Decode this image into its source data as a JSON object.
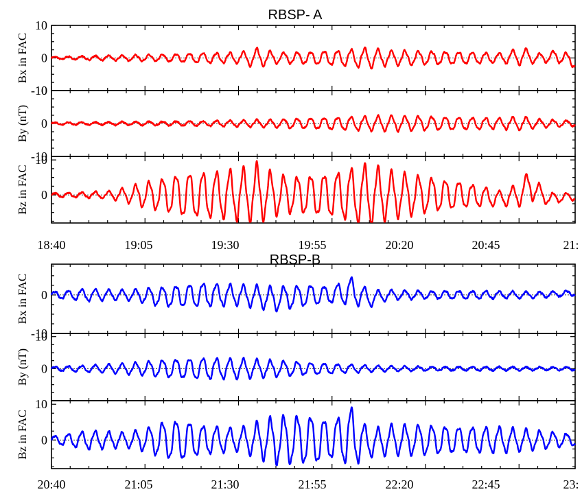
{
  "chart_data": [
    {
      "type": "line",
      "title": "RBSP- A",
      "color": "#ff0000",
      "x_tick_labels": [
        "18:40",
        "19:05",
        "19:30",
        "19:55",
        "20:20",
        "20:45",
        "21:"
      ],
      "xlim": [
        "18:40",
        "21:00"
      ],
      "panels": [
        {
          "key": "bx",
          "ylabel": "Bx  in FAC",
          "ylim": [
            -10,
            10
          ],
          "ytick_labels": [
            "10",
            "0",
            "-10"
          ],
          "series": [
            {
              "x": [
                "18:40",
                "18:50",
                "19:00",
                "19:10",
                "19:20",
                "19:30",
                "19:35",
                "19:40",
                "19:50",
                "20:00",
                "20:05",
                "20:10",
                "20:20",
                "20:30",
                "20:40",
                "20:46",
                "20:50",
                "20:56",
                "21:00"
              ],
              "amplitude": [
                0.3,
                0.6,
                0.8,
                1.0,
                1.4,
                1.6,
                2.8,
                1.6,
                1.8,
                2.5,
                3.0,
                2.2,
                2.0,
                1.8,
                1.4,
                2.6,
                1.2,
                2.0,
                1.5
              ],
              "offset": [
                0,
                0,
                0,
                0,
                0,
                0,
                0,
                0,
                0,
                0,
                0,
                0,
                0,
                0,
                0,
                0.5,
                0,
                0.5,
                -1.5
              ]
            }
          ]
        },
        {
          "key": "by",
          "ylabel": "By (nT)",
          "ylim": [
            -10,
            10
          ],
          "ytick_labels": [
            "10",
            "0",
            "-10"
          ],
          "series": [
            {
              "x": [
                "18:40",
                "18:50",
                "19:00",
                "19:10",
                "19:20",
                "19:30",
                "19:40",
                "19:50",
                "20:00",
                "20:10",
                "20:20",
                "20:30",
                "20:40",
                "20:46",
                "20:50",
                "21:00"
              ],
              "amplitude": [
                0.3,
                0.4,
                0.5,
                0.6,
                0.7,
                0.9,
                1.2,
                1.6,
                2.0,
                2.2,
                2.0,
                1.8,
                1.6,
                2.0,
                1.2,
                0.8
              ],
              "offset": [
                0,
                0,
                0,
                0,
                0,
                0,
                0,
                0,
                0,
                0,
                0,
                0,
                0,
                0,
                0,
                0
              ]
            }
          ]
        },
        {
          "key": "bz",
          "ylabel": "Bz in FAC",
          "ylim": [
            -8,
            11
          ],
          "ytick_labels": [
            "10",
            "0"
          ],
          "series": [
            {
              "x": [
                "18:40",
                "18:55",
                "19:00",
                "19:05",
                "19:10",
                "19:15",
                "19:25",
                "19:30",
                "19:35",
                "19:40",
                "19:45",
                "19:55",
                "20:05",
                "20:10",
                "20:20",
                "20:30",
                "20:40",
                "20:45",
                "20:48",
                "20:52",
                "21:00"
              ],
              "amplitude": [
                0.5,
                1.0,
                2.0,
                3.5,
                4.5,
                6.0,
                6.5,
                7.0,
                8.0,
                5.5,
                5.0,
                6.0,
                8.5,
                6.5,
                5.0,
                3.5,
                2.0,
                3.0,
                4.0,
                1.5,
                1.0
              ],
              "offset": [
                0,
                0,
                0,
                0,
                0,
                0,
                0,
                0,
                0.5,
                0,
                0,
                0,
                0,
                0,
                0,
                0,
                -1,
                0,
                3,
                -1,
                -0.5
              ]
            }
          ]
        }
      ]
    },
    {
      "type": "line",
      "title": "RBSP-B",
      "color": "#0000ff",
      "x_tick_labels": [
        "20:40",
        "21:05",
        "21:30",
        "21:55",
        "22:20",
        "22:45",
        "23:"
      ],
      "xlim": [
        "20:40",
        "23:00"
      ],
      "panels": [
        {
          "key": "bx",
          "ylabel": "Bx in FAC",
          "ylim": [
            -10,
            8
          ],
          "ytick_labels": [
            "0",
            "-10"
          ],
          "series": [
            {
              "x": [
                "20:40",
                "20:50",
                "21:00",
                "21:10",
                "21:20",
                "21:30",
                "21:40",
                "21:50",
                "21:55",
                "22:00",
                "22:05",
                "22:10",
                "22:20",
                "22:30",
                "22:40",
                "22:50",
                "23:00"
              ],
              "amplitude": [
                0.8,
                1.5,
                1.2,
                2.5,
                3.0,
                2.5,
                3.0,
                2.5,
                2.0,
                3.5,
                2.0,
                1.2,
                1.0,
                1.0,
                0.9,
                0.8,
                0.6
              ],
              "offset": [
                0,
                0,
                0,
                -0.5,
                0,
                0,
                -1,
                0,
                0,
                1,
                -1,
                0,
                0,
                0,
                0,
                0,
                0.5
              ]
            }
          ]
        },
        {
          "key": "by",
          "ylabel": "By (nT)",
          "ylim": [
            -10,
            11
          ],
          "ytick_labels": [
            "10",
            "0"
          ],
          "series": [
            {
              "x": [
                "20:40",
                "20:50",
                "21:00",
                "21:10",
                "21:20",
                "21:30",
                "21:40",
                "21:50",
                "22:00",
                "22:10",
                "22:20",
                "22:30",
                "22:40",
                "22:50",
                "23:00"
              ],
              "amplitude": [
                0.6,
                1.0,
                1.6,
                2.6,
                3.2,
                3.0,
                2.4,
                1.8,
                1.2,
                0.8,
                0.6,
                0.6,
                0.6,
                0.5,
                0.5
              ],
              "offset": [
                0,
                0,
                0,
                0,
                0,
                0,
                0,
                0,
                0,
                0,
                0,
                0,
                0,
                0,
                0
              ]
            }
          ]
        },
        {
          "key": "bz",
          "ylabel": "Bz in FAC",
          "ylim": [
            -8,
            11
          ],
          "ytick_labels": [
            "10",
            "0"
          ],
          "series": [
            {
              "x": [
                "20:40",
                "20:50",
                "21:00",
                "21:05",
                "21:10",
                "21:15",
                "21:20",
                "21:30",
                "21:40",
                "21:50",
                "21:55",
                "22:00",
                "22:05",
                "22:10",
                "22:20",
                "22:30",
                "22:40",
                "22:50",
                "23:00"
              ],
              "amplitude": [
                1.0,
                2.5,
                2.0,
                3.0,
                5.0,
                5.5,
                4.0,
                3.0,
                6.5,
                6.5,
                5.0,
                8.0,
                3.5,
                4.0,
                4.0,
                3.5,
                3.5,
                2.5,
                1.5
              ],
              "offset": [
                0,
                0,
                0,
                0,
                0,
                0,
                0,
                0,
                0,
                0,
                0,
                1,
                -1,
                0,
                0,
                0,
                0,
                0,
                0
              ]
            }
          ]
        }
      ]
    }
  ]
}
